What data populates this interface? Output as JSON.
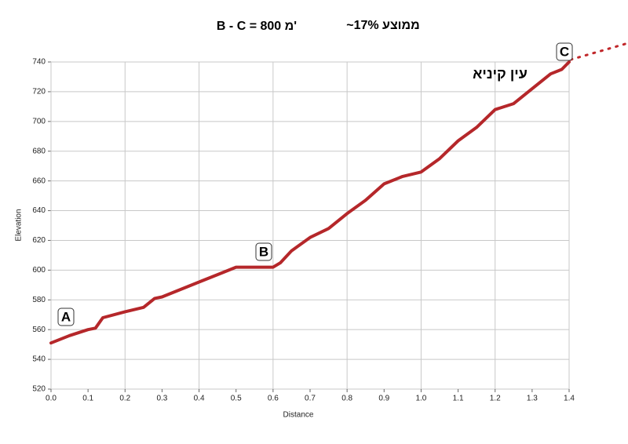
{
  "chart_data": {
    "type": "line",
    "title": "B - C = 800 מ'",
    "subtitle": "~17% ממוצע",
    "x_label": "Distance",
    "y_label": "Elevation",
    "annotations": [
      "A",
      "B",
      "C",
      "עין קיניא"
    ],
    "x": [
      0,
      0.05,
      0.1,
      0.12,
      0.14,
      0.2,
      0.25,
      0.28,
      0.3,
      0.35,
      0.4,
      0.45,
      0.5,
      0.55,
      0.6,
      0.62,
      0.65,
      0.7,
      0.75,
      0.8,
      0.85,
      0.9,
      0.95,
      1.0,
      1.05,
      1.1,
      1.15,
      1.2,
      1.25,
      1.3,
      1.35,
      1.38,
      1.4
    ],
    "series": [
      {
        "color": "#b5272a",
        "values": [
          551,
          556,
          560,
          561,
          568,
          572,
          575,
          581,
          582,
          587,
          592,
          597,
          602,
          602,
          602,
          605,
          613,
          622,
          628,
          638,
          647,
          658,
          663,
          666,
          675,
          687,
          696,
          708,
          712,
          722,
          732,
          735,
          740
        ]
      }
    ],
    "xlim": [
      0,
      1.4
    ],
    "xticks": [
      {
        "value": 0,
        "label": "0.0"
      },
      0.1,
      0.2,
      0.3,
      0.4,
      0.5,
      0.6,
      0.7,
      0.8,
      0.9,
      {
        "value": 1,
        "label": "1.0"
      },
      1.1,
      1.2,
      1.3,
      1.4
    ],
    "ylim": [
      520,
      740
    ],
    "yticks": [
      520,
      540,
      560,
      580,
      600,
      620,
      640,
      660,
      680,
      700,
      720,
      740
    ],
    "grid": true
  }
}
